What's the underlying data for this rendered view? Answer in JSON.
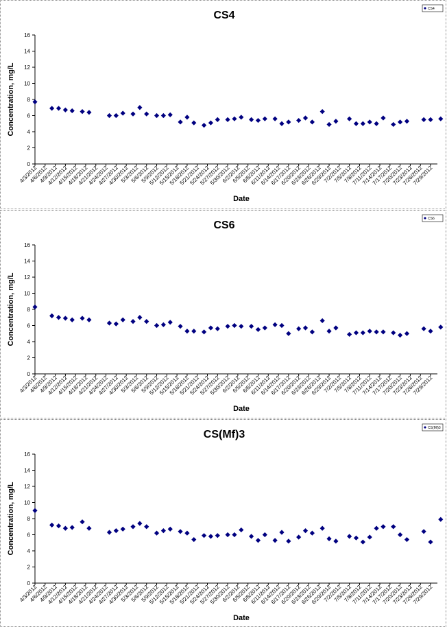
{
  "chart_data": [
    {
      "type": "scatter",
      "title": "CS4",
      "xlabel": "Date",
      "ylabel": "Concentration, mg/L",
      "ylim": [
        0,
        16
      ],
      "yticks": [
        0,
        2,
        4,
        6,
        8,
        10,
        12,
        14,
        16
      ],
      "xlim": [
        "4/3/2012",
        "7/29/2012"
      ],
      "xticks": [
        "4/3/2012",
        "4/6/2012",
        "4/9/2012",
        "4/12/2012",
        "4/15/2012",
        "4/18/2012",
        "4/21/2012",
        "4/24/2012",
        "4/27/2012",
        "4/30/2012",
        "5/3/2012",
        "5/6/2012",
        "5/9/2012",
        "5/12/2012",
        "5/15/2012",
        "5/18/2012",
        "5/21/2012",
        "5/24/2012",
        "5/27/2012",
        "5/30/2012",
        "6/2/2012",
        "6/5/2012",
        "6/8/2012",
        "6/11/2012",
        "6/14/2012",
        "6/17/2012",
        "6/20/2012",
        "6/23/2012",
        "6/26/2012",
        "6/29/2012",
        "7/2/2012",
        "7/5/2012",
        "7/8/2012",
        "7/11/2012",
        "7/14/2012",
        "7/17/2012",
        "7/20/2012",
        "7/23/2012",
        "7/26/2012",
        "7/29/2012"
      ],
      "legend": "CS4",
      "legend_position": "top-right",
      "color": "#000080",
      "points": [
        {
          "x": "4/3/2012",
          "y": 7.7
        },
        {
          "x": "4/8/2012",
          "y": 6.9
        },
        {
          "x": "4/10/2012",
          "y": 6.9
        },
        {
          "x": "4/12/2012",
          "y": 6.7
        },
        {
          "x": "4/14/2012",
          "y": 6.6
        },
        {
          "x": "4/17/2012",
          "y": 6.5
        },
        {
          "x": "4/19/2012",
          "y": 6.4
        },
        {
          "x": "4/25/2012",
          "y": 6.0
        },
        {
          "x": "4/27/2012",
          "y": 6.0
        },
        {
          "x": "4/29/2012",
          "y": 6.3
        },
        {
          "x": "5/2/2012",
          "y": 6.2
        },
        {
          "x": "5/4/2012",
          "y": 7.0
        },
        {
          "x": "5/6/2012",
          "y": 6.2
        },
        {
          "x": "5/9/2012",
          "y": 6.0
        },
        {
          "x": "5/11/2012",
          "y": 6.0
        },
        {
          "x": "5/13/2012",
          "y": 6.1
        },
        {
          "x": "5/16/2012",
          "y": 5.2
        },
        {
          "x": "5/18/2012",
          "y": 5.8
        },
        {
          "x": "5/20/2012",
          "y": 5.1
        },
        {
          "x": "5/23/2012",
          "y": 4.8
        },
        {
          "x": "5/25/2012",
          "y": 5.1
        },
        {
          "x": "5/27/2012",
          "y": 5.5
        },
        {
          "x": "5/30/2012",
          "y": 5.5
        },
        {
          "x": "6/1/2012",
          "y": 5.6
        },
        {
          "x": "6/3/2012",
          "y": 5.8
        },
        {
          "x": "6/6/2012",
          "y": 5.5
        },
        {
          "x": "6/8/2012",
          "y": 5.4
        },
        {
          "x": "6/10/2012",
          "y": 5.6
        },
        {
          "x": "6/13/2012",
          "y": 5.6
        },
        {
          "x": "6/15/2012",
          "y": 5.0
        },
        {
          "x": "6/17/2012",
          "y": 5.2
        },
        {
          "x": "6/20/2012",
          "y": 5.4
        },
        {
          "x": "6/22/2012",
          "y": 5.7
        },
        {
          "x": "6/24/2012",
          "y": 5.2
        },
        {
          "x": "6/27/2012",
          "y": 6.5
        },
        {
          "x": "6/29/2012",
          "y": 4.9
        },
        {
          "x": "7/1/2012",
          "y": 5.3
        },
        {
          "x": "7/5/2012",
          "y": 5.6
        },
        {
          "x": "7/7/2012",
          "y": 5.0
        },
        {
          "x": "7/9/2012",
          "y": 5.0
        },
        {
          "x": "7/11/2012",
          "y": 5.2
        },
        {
          "x": "7/13/2012",
          "y": 5.0
        },
        {
          "x": "7/15/2012",
          "y": 5.7
        },
        {
          "x": "7/18/2012",
          "y": 4.9
        },
        {
          "x": "7/20/2012",
          "y": 5.2
        },
        {
          "x": "7/22/2012",
          "y": 5.3
        },
        {
          "x": "7/27/2012",
          "y": 5.5
        },
        {
          "x": "7/29/2012",
          "y": 5.5
        },
        {
          "x": "8/1/2012",
          "y": 5.6
        }
      ]
    },
    {
      "type": "scatter",
      "title": "CS6",
      "xlabel": "Date",
      "ylabel": "Concentration, mg/L",
      "ylim": [
        0,
        16
      ],
      "yticks": [
        0,
        2,
        4,
        6,
        8,
        10,
        12,
        14,
        16
      ],
      "xlim": [
        "4/3/2012",
        "7/29/2012"
      ],
      "xticks": [
        "4/3/2012",
        "4/6/2012",
        "4/9/2012",
        "4/12/2012",
        "4/15/2012",
        "4/18/2012",
        "4/21/2012",
        "4/24/2012",
        "4/27/2012",
        "4/30/2012",
        "5/3/2012",
        "5/6/2012",
        "5/9/2012",
        "5/12/2012",
        "5/15/2012",
        "5/18/2012",
        "5/21/2012",
        "5/24/2012",
        "5/27/2012",
        "5/30/2012",
        "6/2/2012",
        "6/5/2012",
        "6/8/2012",
        "6/11/2012",
        "6/14/2012",
        "6/17/2012",
        "6/20/2012",
        "6/23/2012",
        "6/26/2012",
        "6/29/2012",
        "7/2/2012",
        "7/5/2012",
        "7/8/2012",
        "7/11/2012",
        "7/14/2012",
        "7/17/2012",
        "7/20/2012",
        "7/23/2012",
        "7/26/2012",
        "7/29/2012"
      ],
      "legend": "CS6",
      "legend_position": "top-right",
      "color": "#000080",
      "points": [
        {
          "x": "4/3/2012",
          "y": 8.3
        },
        {
          "x": "4/8/2012",
          "y": 7.2
        },
        {
          "x": "4/10/2012",
          "y": 7.0
        },
        {
          "x": "4/12/2012",
          "y": 6.9
        },
        {
          "x": "4/14/2012",
          "y": 6.7
        },
        {
          "x": "4/17/2012",
          "y": 6.9
        },
        {
          "x": "4/19/2012",
          "y": 6.7
        },
        {
          "x": "4/25/2012",
          "y": 6.3
        },
        {
          "x": "4/27/2012",
          "y": 6.2
        },
        {
          "x": "4/29/2012",
          "y": 6.7
        },
        {
          "x": "5/2/2012",
          "y": 6.5
        },
        {
          "x": "5/4/2012",
          "y": 7.0
        },
        {
          "x": "5/6/2012",
          "y": 6.5
        },
        {
          "x": "5/9/2012",
          "y": 6.0
        },
        {
          "x": "5/11/2012",
          "y": 6.1
        },
        {
          "x": "5/13/2012",
          "y": 6.4
        },
        {
          "x": "5/16/2012",
          "y": 5.9
        },
        {
          "x": "5/18/2012",
          "y": 5.3
        },
        {
          "x": "5/20/2012",
          "y": 5.3
        },
        {
          "x": "5/23/2012",
          "y": 5.2
        },
        {
          "x": "5/25/2012",
          "y": 5.7
        },
        {
          "x": "5/27/2012",
          "y": 5.6
        },
        {
          "x": "5/30/2012",
          "y": 5.9
        },
        {
          "x": "6/1/2012",
          "y": 6.0
        },
        {
          "x": "6/3/2012",
          "y": 5.9
        },
        {
          "x": "6/6/2012",
          "y": 5.9
        },
        {
          "x": "6/8/2012",
          "y": 5.5
        },
        {
          "x": "6/10/2012",
          "y": 5.7
        },
        {
          "x": "6/13/2012",
          "y": 6.1
        },
        {
          "x": "6/15/2012",
          "y": 6.0
        },
        {
          "x": "6/17/2012",
          "y": 5.0
        },
        {
          "x": "6/20/2012",
          "y": 5.6
        },
        {
          "x": "6/22/2012",
          "y": 5.7
        },
        {
          "x": "6/24/2012",
          "y": 5.2
        },
        {
          "x": "6/27/2012",
          "y": 6.6
        },
        {
          "x": "6/29/2012",
          "y": 5.3
        },
        {
          "x": "7/1/2012",
          "y": 5.7
        },
        {
          "x": "7/5/2012",
          "y": 4.9
        },
        {
          "x": "7/7/2012",
          "y": 5.1
        },
        {
          "x": "7/9/2012",
          "y": 5.1
        },
        {
          "x": "7/11/2012",
          "y": 5.3
        },
        {
          "x": "7/13/2012",
          "y": 5.2
        },
        {
          "x": "7/15/2012",
          "y": 5.2
        },
        {
          "x": "7/18/2012",
          "y": 5.1
        },
        {
          "x": "7/20/2012",
          "y": 4.8
        },
        {
          "x": "7/22/2012",
          "y": 5.0
        },
        {
          "x": "7/27/2012",
          "y": 5.6
        },
        {
          "x": "7/29/2012",
          "y": 5.3
        },
        {
          "x": "8/1/2012",
          "y": 5.8
        }
      ]
    },
    {
      "type": "scatter",
      "title": "CS(Mf)3",
      "xlabel": "Date",
      "ylabel": "Concentration, mg/L",
      "ylim": [
        0,
        16
      ],
      "yticks": [
        0,
        2,
        4,
        6,
        8,
        10,
        12,
        14,
        16
      ],
      "xlim": [
        "4/3/2012",
        "7/29/2012"
      ],
      "xticks": [
        "4/3/2012",
        "4/6/2012",
        "4/9/2012",
        "4/12/2012",
        "4/15/2012",
        "4/18/2012",
        "4/21/2012",
        "4/24/2012",
        "4/27/2012",
        "4/30/2012",
        "5/3/2012",
        "5/6/2012",
        "5/9/2012",
        "5/12/2012",
        "5/15/2012",
        "5/18/2012",
        "5/21/2012",
        "5/24/2012",
        "5/27/2012",
        "5/30/2012",
        "6/2/2012",
        "6/5/2012",
        "6/8/2012",
        "6/11/2012",
        "6/14/2012",
        "6/17/2012",
        "6/20/2012",
        "6/23/2012",
        "6/26/2012",
        "6/29/2012",
        "7/2/2012",
        "7/5/2012",
        "7/8/2012",
        "7/11/2012",
        "7/14/2012",
        "7/17/2012",
        "7/20/2012",
        "7/23/2012",
        "7/26/2012",
        "7/29/2012"
      ],
      "legend": "CS(Mf)3",
      "legend_position": "top-right",
      "color": "#000080",
      "points": [
        {
          "x": "4/3/2012",
          "y": 9.0
        },
        {
          "x": "4/8/2012",
          "y": 7.2
        },
        {
          "x": "4/10/2012",
          "y": 7.1
        },
        {
          "x": "4/12/2012",
          "y": 6.8
        },
        {
          "x": "4/14/2012",
          "y": 6.9
        },
        {
          "x": "4/17/2012",
          "y": 7.6
        },
        {
          "x": "4/19/2012",
          "y": 6.8
        },
        {
          "x": "4/25/2012",
          "y": 6.3
        },
        {
          "x": "4/27/2012",
          "y": 6.5
        },
        {
          "x": "4/29/2012",
          "y": 6.7
        },
        {
          "x": "5/2/2012",
          "y": 7.0
        },
        {
          "x": "5/4/2012",
          "y": 7.4
        },
        {
          "x": "5/6/2012",
          "y": 7.0
        },
        {
          "x": "5/9/2012",
          "y": 6.2
        },
        {
          "x": "5/11/2012",
          "y": 6.5
        },
        {
          "x": "5/13/2012",
          "y": 6.7
        },
        {
          "x": "5/16/2012",
          "y": 6.4
        },
        {
          "x": "5/18/2012",
          "y": 6.2
        },
        {
          "x": "5/20/2012",
          "y": 5.4
        },
        {
          "x": "5/23/2012",
          "y": 5.9
        },
        {
          "x": "5/25/2012",
          "y": 5.8
        },
        {
          "x": "5/27/2012",
          "y": 5.9
        },
        {
          "x": "5/30/2012",
          "y": 6.0
        },
        {
          "x": "6/1/2012",
          "y": 6.0
        },
        {
          "x": "6/3/2012",
          "y": 6.6
        },
        {
          "x": "6/6/2012",
          "y": 5.8
        },
        {
          "x": "6/8/2012",
          "y": 5.3
        },
        {
          "x": "6/10/2012",
          "y": 6.0
        },
        {
          "x": "6/13/2012",
          "y": 5.3
        },
        {
          "x": "6/15/2012",
          "y": 6.3
        },
        {
          "x": "6/17/2012",
          "y": 5.2
        },
        {
          "x": "6/20/2012",
          "y": 5.7
        },
        {
          "x": "6/22/2012",
          "y": 6.5
        },
        {
          "x": "6/24/2012",
          "y": 6.2
        },
        {
          "x": "6/27/2012",
          "y": 6.8
        },
        {
          "x": "6/29/2012",
          "y": 5.5
        },
        {
          "x": "7/1/2012",
          "y": 5.2
        },
        {
          "x": "7/5/2012",
          "y": 5.8
        },
        {
          "x": "7/7/2012",
          "y": 5.6
        },
        {
          "x": "7/9/2012",
          "y": 5.1
        },
        {
          "x": "7/11/2012",
          "y": 5.7
        },
        {
          "x": "7/13/2012",
          "y": 6.8
        },
        {
          "x": "7/15/2012",
          "y": 7.0
        },
        {
          "x": "7/18/2012",
          "y": 7.0
        },
        {
          "x": "7/20/2012",
          "y": 6.0
        },
        {
          "x": "7/22/2012",
          "y": 5.4
        },
        {
          "x": "7/27/2012",
          "y": 6.4
        },
        {
          "x": "7/29/2012",
          "y": 5.1
        },
        {
          "x": "8/1/2012",
          "y": 7.9
        }
      ]
    }
  ]
}
